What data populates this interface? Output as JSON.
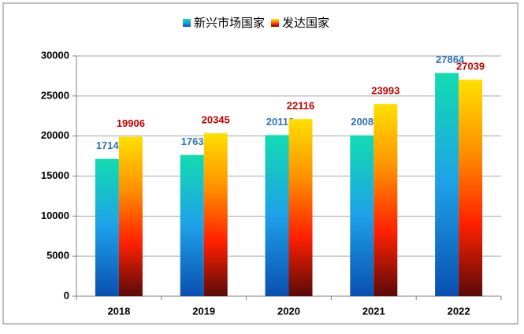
{
  "chart_data": {
    "type": "bar",
    "categories": [
      "2018",
      "2019",
      "2020",
      "2021",
      "2022"
    ],
    "series": [
      {
        "name": "新兴市场国家",
        "color": "#1e90e0",
        "gradient": [
          "#12dcb0",
          "#1ea0e8",
          "#0a4fb0"
        ],
        "label_color": "#2e75b6",
        "values": [
          17147,
          17630,
          20118,
          20085,
          27864
        ]
      },
      {
        "name": "发达国家",
        "color": "#ff8c00",
        "gradient": [
          "#ffe000",
          "#ff9000",
          "#ff2000",
          "#5a0a0a"
        ],
        "label_color": "#c00000",
        "values": [
          19906,
          20345,
          22116,
          23993,
          27039
        ]
      }
    ],
    "ylim": [
      0,
      30000
    ],
    "yticks": [
      0,
      5000,
      10000,
      15000,
      20000,
      25000,
      30000
    ],
    "grid": true,
    "legend": "top"
  }
}
